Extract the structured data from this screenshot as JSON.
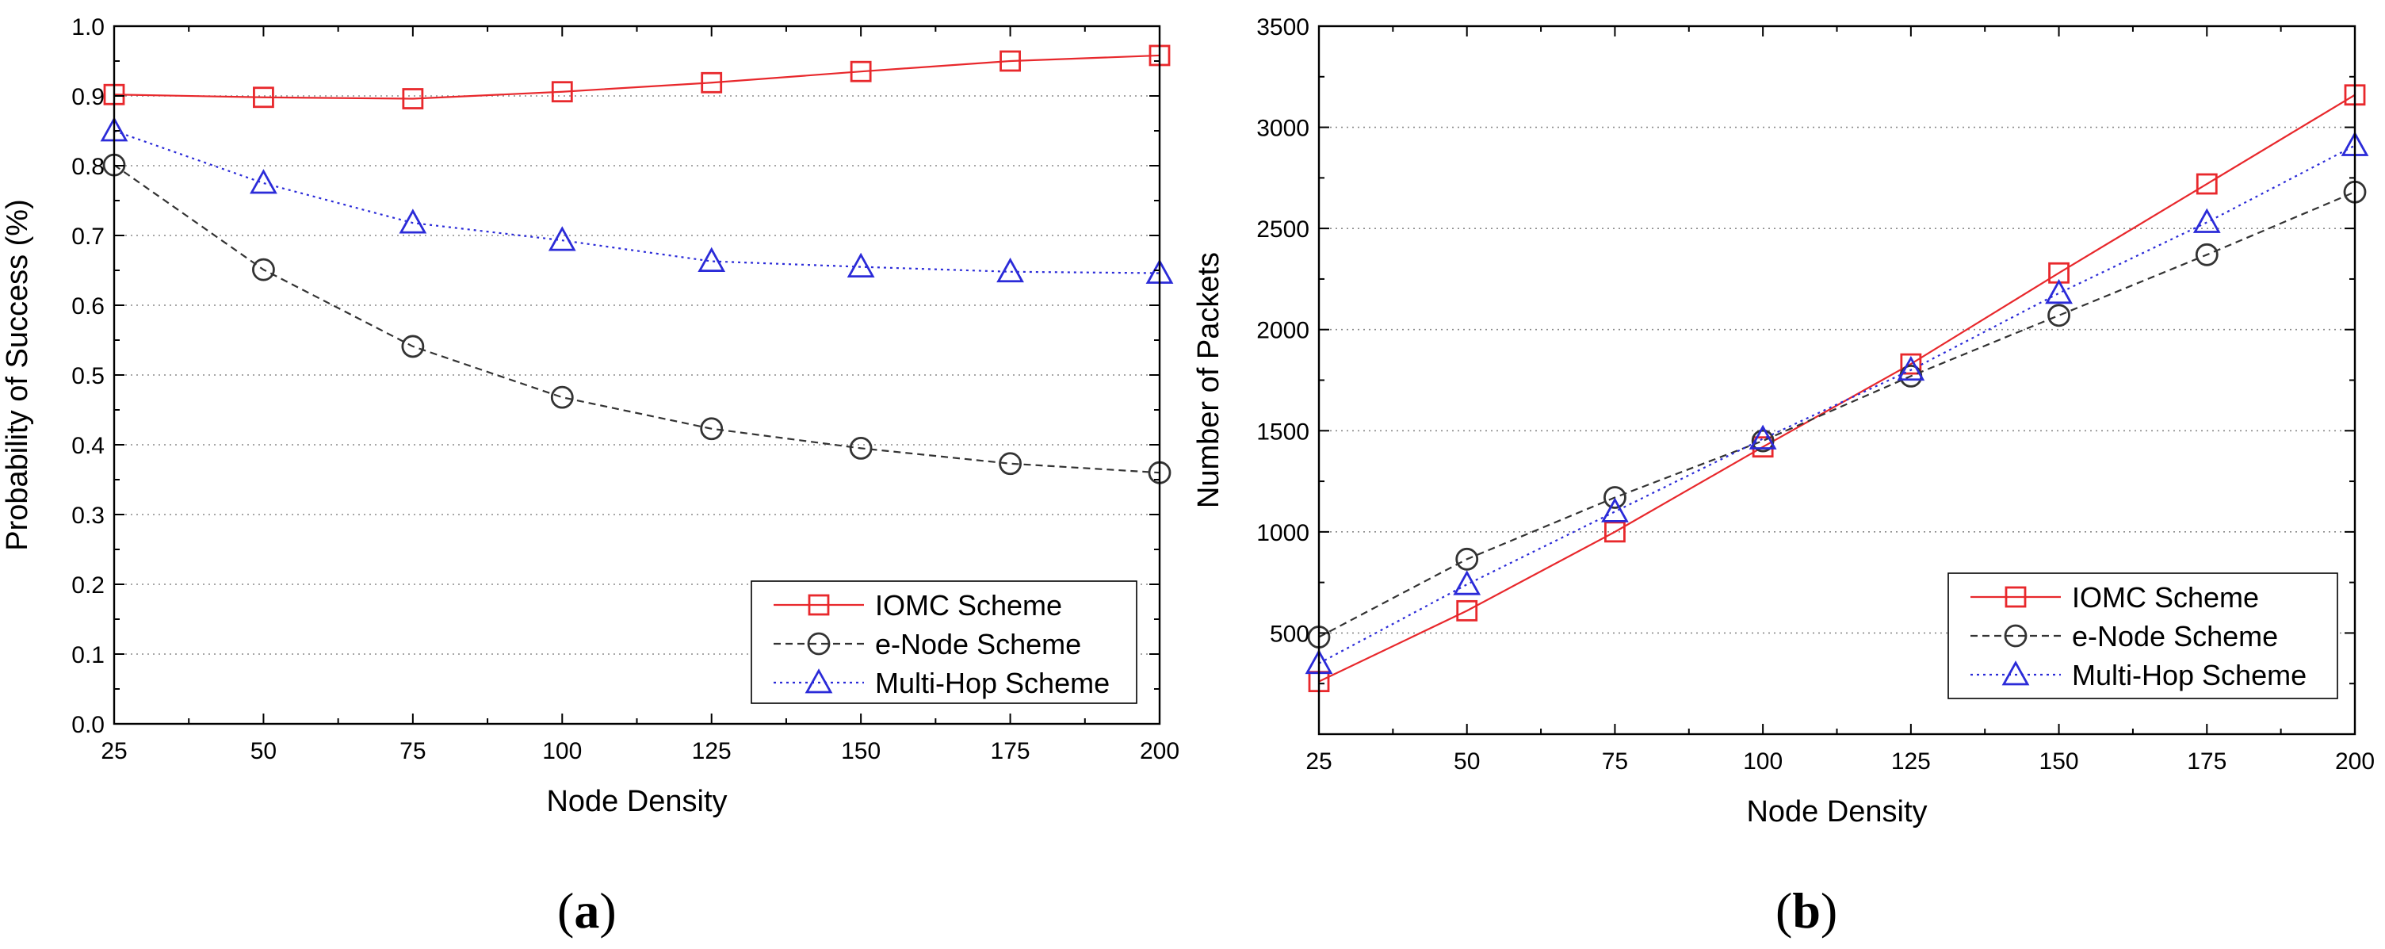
{
  "chart_data": [
    {
      "type": "line",
      "panel_label": "a",
      "title": "",
      "xlabel": "Node Density",
      "ylabel": "Probability of Success (%)",
      "xlim": [
        25,
        200
      ],
      "ylim": [
        0.0,
        1.0
      ],
      "xticks": [
        25,
        50,
        75,
        100,
        125,
        150,
        175,
        200
      ],
      "xtick_labels": [
        "25",
        "50",
        "75",
        "100",
        "125",
        "150",
        "175",
        "200"
      ],
      "yticks": [
        0.0,
        0.1,
        0.2,
        0.3,
        0.4,
        0.5,
        0.6,
        0.7,
        0.8,
        0.9,
        1.0
      ],
      "ytick_labels": [
        "0.0",
        "0.1",
        "0.2",
        "0.3",
        "0.4",
        "0.5",
        "0.6",
        "0.7",
        "0.8",
        "0.9",
        "1.0"
      ],
      "grid": "horizontal dotted",
      "legend_position": "bottom-right",
      "x": [
        25,
        50,
        75,
        100,
        125,
        150,
        175,
        200
      ],
      "series": [
        {
          "name": "IOMC Scheme",
          "color": "#e8282c",
          "marker": "square",
          "line": "solid",
          "values": [
            0.902,
            0.898,
            0.896,
            0.906,
            0.919,
            0.935,
            0.95,
            0.958
          ]
        },
        {
          "name": "e-Node Scheme",
          "color": "#333333",
          "marker": "circle",
          "line": "dashed",
          "values": [
            0.801,
            0.651,
            0.541,
            0.468,
            0.423,
            0.395,
            0.373,
            0.36
          ]
        },
        {
          "name": "Multi-Hop Scheme",
          "color": "#2b2bd8",
          "marker": "triangle",
          "line": "dotted",
          "values": [
            0.85,
            0.775,
            0.718,
            0.693,
            0.663,
            0.655,
            0.648,
            0.646
          ]
        }
      ]
    },
    {
      "type": "line",
      "panel_label": "b",
      "title": "",
      "xlabel": "Node Density",
      "ylabel": "Number of Packets",
      "xlim": [
        25,
        200
      ],
      "ylim": [
        0,
        3500
      ],
      "xticks": [
        25,
        50,
        75,
        100,
        125,
        150,
        175,
        200
      ],
      "xtick_labels": [
        "25",
        "50",
        "75",
        "100",
        "125",
        "150",
        "175",
        "200"
      ],
      "yticks": [
        500,
        1000,
        1500,
        2000,
        2500,
        3000,
        3500
      ],
      "ytick_labels": [
        "500",
        "1000",
        "1500",
        "2000",
        "2500",
        "3000",
        "3500"
      ],
      "grid": "horizontal dotted",
      "legend_position": "bottom-right",
      "x": [
        25,
        50,
        75,
        100,
        125,
        150,
        175,
        200
      ],
      "series": [
        {
          "name": "IOMC Scheme",
          "color": "#e8282c",
          "marker": "square",
          "line": "solid",
          "values": [
            260,
            610,
            1000,
            1420,
            1830,
            2280,
            2720,
            3160
          ]
        },
        {
          "name": "e-Node Scheme",
          "color": "#333333",
          "marker": "circle",
          "line": "dashed",
          "values": [
            480,
            865,
            1170,
            1450,
            1770,
            2070,
            2370,
            2680
          ]
        },
        {
          "name": "Multi-Hop Scheme",
          "color": "#2b2bd8",
          "marker": "triangle",
          "line": "dotted",
          "values": [
            350,
            740,
            1100,
            1460,
            1800,
            2180,
            2530,
            2910
          ]
        }
      ]
    }
  ]
}
